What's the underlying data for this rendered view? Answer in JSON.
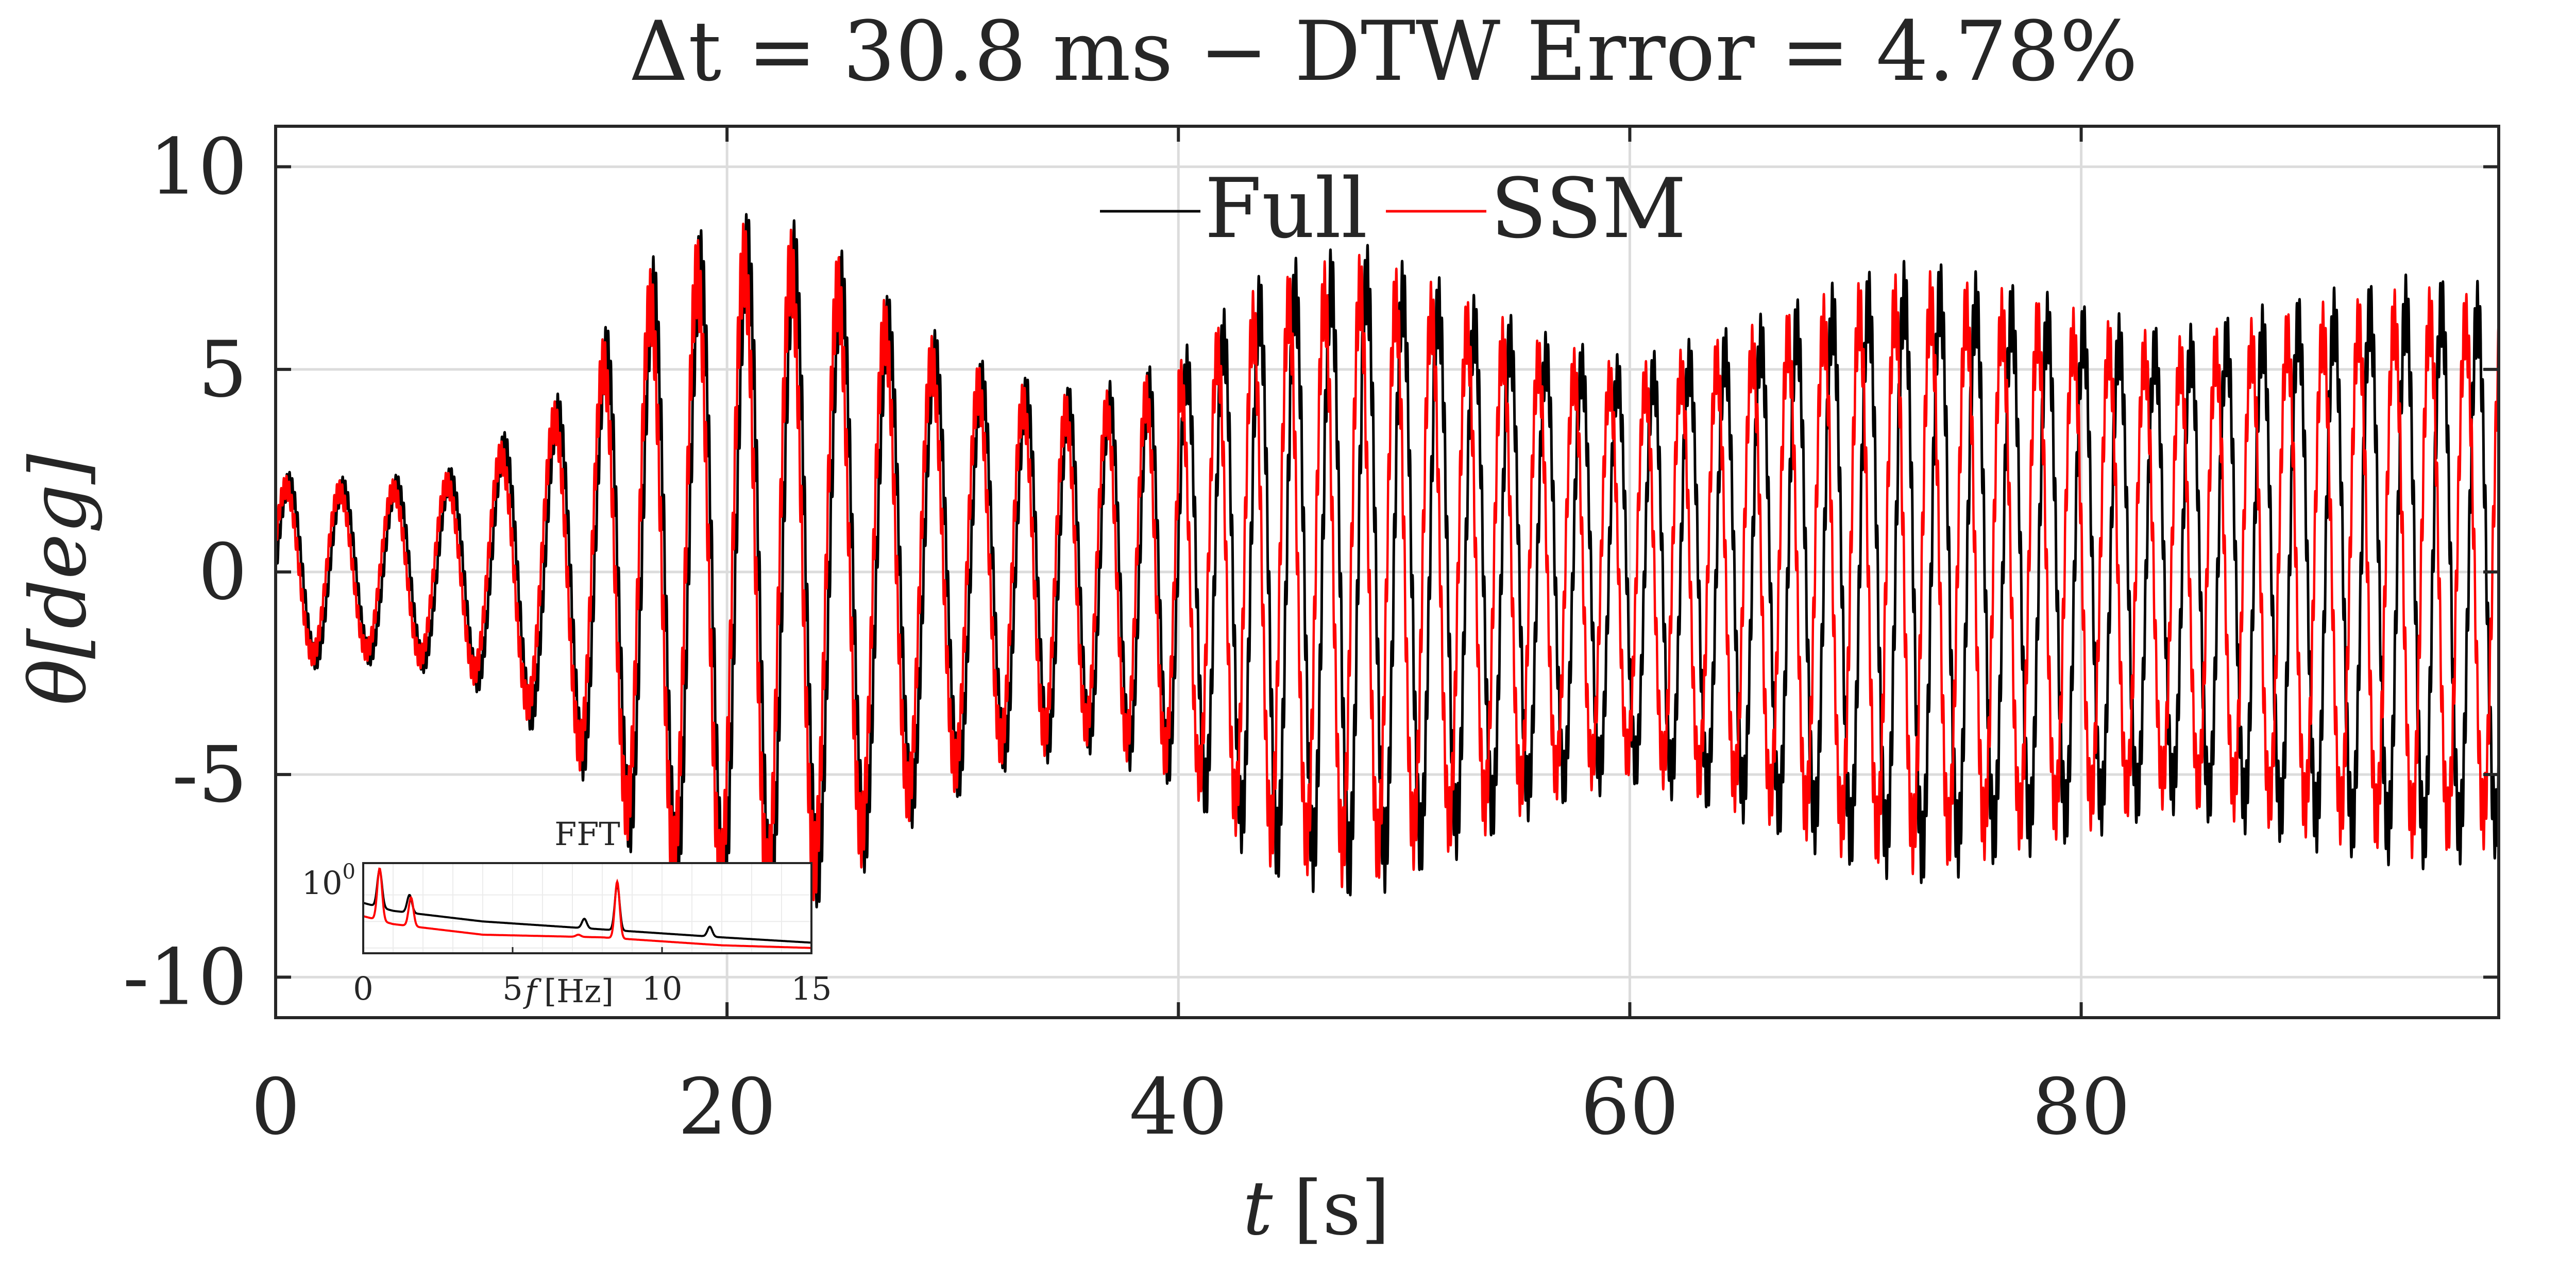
{
  "chart_data": {
    "type": "line",
    "title": "Δt = 30.8 ms − DTW Error = 4.78%",
    "xlabel_var": "t",
    "xlabel_unit": "[s]",
    "ylabel_var": "θ",
    "ylabel_unit": "[deg]",
    "xlim": [
      0,
      98.5
    ],
    "ylim": [
      -11,
      11
    ],
    "xticks": [
      0,
      20,
      40,
      60,
      80
    ],
    "xtick_labels": [
      "0",
      "20",
      "40",
      "60",
      "80"
    ],
    "yticks": [
      10,
      5,
      0,
      -5,
      -10
    ],
    "ytick_labels": [
      "10",
      "5",
      "0",
      "-5",
      "-10"
    ],
    "grid": true,
    "legend_position": "top-center",
    "series": [
      {
        "name": "Full",
        "color": "#000000",
        "envelope": [
          {
            "t": 0,
            "amp": 2.5
          },
          {
            "t": 4,
            "amp": 2.3
          },
          {
            "t": 8,
            "amp": 2.6
          },
          {
            "t": 11,
            "amp": 3.8
          },
          {
            "t": 13,
            "amp": 4.6
          },
          {
            "t": 15,
            "amp": 6.4
          },
          {
            "t": 17,
            "amp": 8.0
          },
          {
            "t": 20,
            "amp": 8.8
          },
          {
            "t": 22,
            "amp": 9.0
          },
          {
            "t": 25,
            "amp": 8.0
          },
          {
            "t": 28,
            "amp": 6.4
          },
          {
            "t": 32,
            "amp": 5.0
          },
          {
            "t": 36,
            "amp": 4.5
          },
          {
            "t": 40,
            "amp": 5.4
          },
          {
            "t": 44,
            "amp": 7.6
          },
          {
            "t": 48,
            "amp": 8.2
          },
          {
            "t": 52,
            "amp": 7.2
          },
          {
            "t": 56,
            "amp": 6.0
          },
          {
            "t": 60,
            "amp": 5.3
          },
          {
            "t": 65,
            "amp": 6.2
          },
          {
            "t": 70,
            "amp": 7.4
          },
          {
            "t": 73,
            "amp": 7.8
          },
          {
            "t": 78,
            "amp": 7.0
          },
          {
            "t": 84,
            "amp": 6.0
          },
          {
            "t": 90,
            "amp": 6.9
          },
          {
            "t": 95,
            "amp": 7.4
          },
          {
            "t": 98.5,
            "amp": 7.1
          }
        ]
      },
      {
        "name": "SSM",
        "color": "#ff0000",
        "envelope": [
          {
            "t": 0,
            "amp": 2.4
          },
          {
            "t": 4,
            "amp": 2.2
          },
          {
            "t": 8,
            "amp": 2.5
          },
          {
            "t": 11,
            "amp": 3.6
          },
          {
            "t": 13,
            "amp": 4.5
          },
          {
            "t": 15,
            "amp": 6.2
          },
          {
            "t": 17,
            "amp": 7.8
          },
          {
            "t": 20,
            "amp": 8.6
          },
          {
            "t": 22,
            "amp": 8.7
          },
          {
            "t": 25,
            "amp": 7.8
          },
          {
            "t": 28,
            "amp": 6.2
          },
          {
            "t": 32,
            "amp": 4.8
          },
          {
            "t": 36,
            "amp": 4.3
          },
          {
            "t": 40,
            "amp": 5.2
          },
          {
            "t": 44,
            "amp": 7.3
          },
          {
            "t": 48,
            "amp": 7.9
          },
          {
            "t": 52,
            "amp": 7.0
          },
          {
            "t": 56,
            "amp": 5.8
          },
          {
            "t": 60,
            "amp": 5.1
          },
          {
            "t": 65,
            "amp": 6.0
          },
          {
            "t": 70,
            "amp": 7.2
          },
          {
            "t": 73,
            "amp": 7.5
          },
          {
            "t": 78,
            "amp": 6.8
          },
          {
            "t": 84,
            "amp": 5.8
          },
          {
            "t": 90,
            "amp": 6.6
          },
          {
            "t": 95,
            "amp": 7.1
          },
          {
            "t": 98.5,
            "amp": 6.8
          }
        ]
      }
    ],
    "inset": {
      "title": "FFT",
      "xlabel_var": "f",
      "xlabel_unit": "[Hz]",
      "xlim": [
        0,
        15
      ],
      "xticks": [
        0,
        5,
        10,
        15
      ],
      "xtick_labels": [
        "0",
        "5",
        "10",
        "15"
      ],
      "ytick_label_base": "10",
      "ytick_label_exp": "0",
      "log_ylim": [
        -3.2,
        0.2
      ],
      "series": [
        {
          "name": "Full",
          "color": "#000000",
          "baseline": [
            {
              "f": 0,
              "logA": -1.3
            },
            {
              "f": 1.0,
              "logA": -1.6
            },
            {
              "f": 4,
              "logA": -2.0
            },
            {
              "f": 8,
              "logA": -2.3
            },
            {
              "f": 12,
              "logA": -2.6
            },
            {
              "f": 15,
              "logA": -2.8
            }
          ],
          "peaks": [
            {
              "f": 0.55,
              "logA": -0.05
            },
            {
              "f": 1.55,
              "logA": -1.0
            },
            {
              "f": 7.4,
              "logA": -1.9
            },
            {
              "f": 8.5,
              "logA": -0.6
            },
            {
              "f": 11.6,
              "logA": -2.2
            }
          ]
        },
        {
          "name": "SSM",
          "color": "#ff0000",
          "baseline": [
            {
              "f": 0,
              "logA": -1.8
            },
            {
              "f": 1.0,
              "logA": -2.1
            },
            {
              "f": 4,
              "logA": -2.5
            },
            {
              "f": 8,
              "logA": -2.6
            },
            {
              "f": 12,
              "logA": -2.9
            },
            {
              "f": 15,
              "logA": -3.0
            }
          ],
          "peaks": [
            {
              "f": 0.55,
              "logA": 0.0
            },
            {
              "f": 1.6,
              "logA": -1.1
            },
            {
              "f": 7.2,
              "logA": -2.5
            },
            {
              "f": 8.5,
              "logA": -0.5
            }
          ]
        }
      ]
    }
  }
}
